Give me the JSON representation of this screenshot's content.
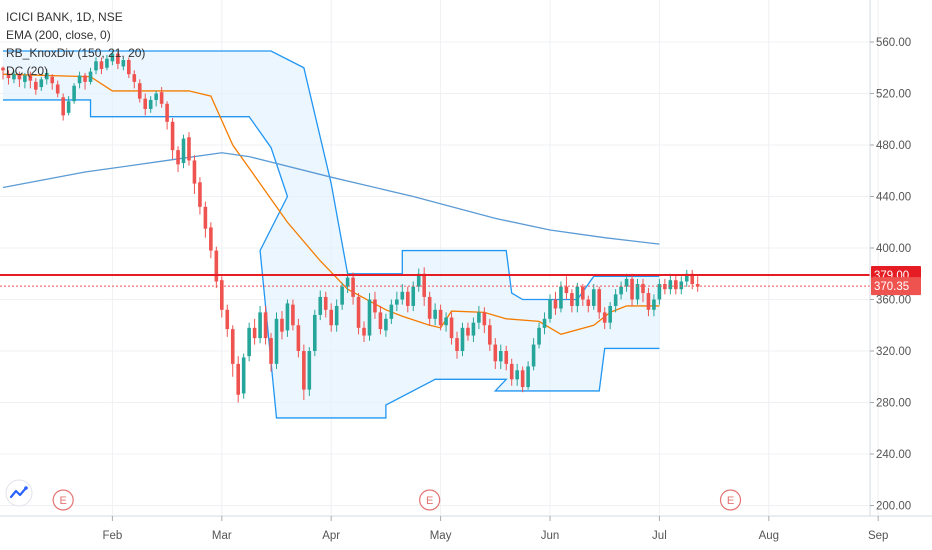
{
  "legend": {
    "symbol": "ICICI BANK, 1D, NSE",
    "ema": "EMA (200, close, 0)",
    "knox": "RB_KnoxDiv (150, 21, 20)",
    "dc": "DC (20)"
  },
  "colors": {
    "up": "#26a69a",
    "down": "#ef5350",
    "donchian": "#2196f3",
    "donchian_fill": "#e3f2fd",
    "midline": "#f57c00",
    "ema": "#5b9bd5",
    "hline": "#e51c23",
    "grid": "#eef0f3"
  },
  "chart_data": {
    "type": "candlestick",
    "y_ticks": [
      "200.00",
      "240.00",
      "280.00",
      "320.00",
      "360.00",
      "400.00",
      "440.00",
      "480.00",
      "520.00",
      "560.00"
    ],
    "ylim": [
      196,
      586
    ],
    "x_ticks": [
      "Feb",
      "Mar",
      "Apr",
      "May",
      "Jun",
      "Jul",
      "Aug",
      "Sep"
    ],
    "x_tick_index": [
      20,
      40,
      60,
      80,
      100,
      120,
      140,
      160
    ],
    "horizontal_line": {
      "value": 379.0,
      "label": "379.00"
    },
    "last_price": {
      "value": 370.35,
      "label": "370.35"
    },
    "earnings_markers": [
      {
        "label": "E",
        "index": 11
      },
      {
        "label": "E",
        "index": 78
      },
      {
        "label": "E",
        "index": 133
      }
    ],
    "ema200": [
      [
        0,
        447
      ],
      [
        15,
        459
      ],
      [
        30,
        468
      ],
      [
        40,
        474
      ],
      [
        45,
        471
      ],
      [
        60,
        455
      ],
      [
        75,
        440
      ],
      [
        90,
        423
      ],
      [
        100,
        414
      ],
      [
        110,
        408
      ],
      [
        120,
        403
      ]
    ],
    "donchian_upper": [
      [
        0,
        553
      ],
      [
        10,
        553
      ],
      [
        26,
        553
      ],
      [
        49,
        553
      ],
      [
        55,
        540
      ],
      [
        60,
        450
      ],
      [
        63,
        380
      ],
      [
        73,
        380
      ],
      [
        73,
        398
      ],
      [
        92,
        398
      ],
      [
        93,
        365
      ],
      [
        95,
        360
      ],
      [
        105,
        360
      ],
      [
        108,
        378
      ],
      [
        120,
        378
      ]
    ],
    "donchian_lower": [
      [
        0,
        515
      ],
      [
        10,
        515
      ],
      [
        16,
        515
      ],
      [
        16,
        502
      ],
      [
        45,
        502
      ],
      [
        49,
        478
      ],
      [
        52,
        440
      ],
      [
        47,
        398
      ],
      [
        50,
        268
      ],
      [
        70,
        268
      ],
      [
        70,
        278
      ],
      [
        79,
        298
      ],
      [
        92,
        298
      ],
      [
        90,
        289
      ],
      [
        109,
        289
      ],
      [
        110,
        322
      ],
      [
        120,
        322
      ]
    ],
    "donchian_mid": [
      [
        0,
        535
      ],
      [
        16,
        533
      ],
      [
        20,
        522
      ],
      [
        34,
        522
      ],
      [
        38,
        518
      ],
      [
        42,
        480
      ],
      [
        45,
        462
      ],
      [
        52,
        420
      ],
      [
        58,
        390
      ],
      [
        63,
        368
      ],
      [
        70,
        352
      ],
      [
        73,
        347
      ],
      [
        78,
        340
      ],
      [
        80,
        338
      ],
      [
        82,
        351
      ],
      [
        88,
        350
      ],
      [
        92,
        345
      ],
      [
        98,
        343
      ],
      [
        102,
        333
      ],
      [
        108,
        340
      ],
      [
        111,
        350
      ],
      [
        114,
        355
      ],
      [
        120,
        355
      ]
    ],
    "candles": [
      [
        540,
        538,
        541,
        531
      ],
      [
        535,
        532,
        538,
        527
      ],
      [
        531,
        535,
        538,
        528
      ],
      [
        535,
        531,
        537,
        525
      ],
      [
        529,
        534,
        536,
        524
      ],
      [
        534,
        530,
        537,
        524
      ],
      [
        529,
        523,
        532,
        519
      ],
      [
        525,
        531,
        533,
        522
      ],
      [
        531,
        536,
        539,
        527
      ],
      [
        533,
        528,
        535,
        523
      ],
      [
        527,
        520,
        530,
        517
      ],
      [
        517,
        503,
        520,
        499
      ],
      [
        505,
        514,
        518,
        503
      ],
      [
        514,
        526,
        528,
        512
      ],
      [
        528,
        534,
        537,
        524
      ],
      [
        534,
        529,
        536,
        523
      ],
      [
        529,
        537,
        540,
        527
      ],
      [
        538,
        545,
        548,
        535
      ],
      [
        545,
        539,
        548,
        535
      ],
      [
        540,
        547,
        550,
        538
      ],
      [
        545,
        551,
        553,
        542
      ],
      [
        551,
        543,
        553,
        539
      ],
      [
        541,
        546,
        548,
        538
      ],
      [
        546,
        535,
        548,
        532
      ],
      [
        535,
        529,
        538,
        524
      ],
      [
        528,
        516,
        531,
        513
      ],
      [
        516,
        508,
        520,
        503
      ],
      [
        508,
        515,
        518,
        505
      ],
      [
        515,
        520,
        522,
        510
      ],
      [
        521,
        512,
        525,
        509
      ],
      [
        512,
        498,
        514,
        492
      ],
      [
        498,
        476,
        501,
        469
      ],
      [
        476,
        465,
        479,
        459
      ],
      [
        466,
        485,
        488,
        462
      ],
      [
        486,
        468,
        490,
        464
      ],
      [
        468,
        450,
        472,
        442
      ],
      [
        451,
        432,
        455,
        426
      ],
      [
        432,
        415,
        436,
        408
      ],
      [
        416,
        398,
        420,
        392
      ],
      [
        398,
        374,
        401,
        369
      ],
      [
        375,
        352,
        378,
        346
      ],
      [
        352,
        337,
        356,
        331
      ],
      [
        337,
        310,
        340,
        300
      ],
      [
        310,
        286,
        316,
        280
      ],
      [
        287,
        315,
        318,
        283
      ],
      [
        316,
        338,
        342,
        312
      ],
      [
        338,
        330,
        345,
        325
      ],
      [
        330,
        350,
        355,
        326
      ],
      [
        350,
        330,
        355,
        325
      ],
      [
        330,
        310,
        334,
        304
      ],
      [
        310,
        345,
        350,
        306
      ],
      [
        345,
        335,
        351,
        329
      ],
      [
        336,
        357,
        360,
        331
      ],
      [
        356,
        340,
        360,
        336
      ],
      [
        340,
        320,
        345,
        315
      ],
      [
        320,
        290,
        325,
        282
      ],
      [
        290,
        320,
        323,
        285
      ],
      [
        320,
        348,
        352,
        316
      ],
      [
        348,
        362,
        367,
        344
      ],
      [
        362,
        352,
        366,
        346
      ],
      [
        352,
        340,
        357,
        335
      ],
      [
        340,
        355,
        360,
        335
      ],
      [
        356,
        370,
        373,
        352
      ],
      [
        370,
        377,
        382,
        365
      ],
      [
        377,
        362,
        381,
        356
      ],
      [
        362,
        338,
        365,
        333
      ],
      [
        338,
        332,
        343,
        327
      ],
      [
        332,
        360,
        365,
        328
      ],
      [
        360,
        350,
        366,
        345
      ],
      [
        350,
        337,
        355,
        333
      ],
      [
        336,
        345,
        349,
        331
      ],
      [
        345,
        356,
        360,
        341
      ],
      [
        356,
        360,
        366,
        351
      ],
      [
        360,
        366,
        372,
        356
      ],
      [
        366,
        355,
        370,
        350
      ],
      [
        355,
        370,
        374,
        351
      ],
      [
        370,
        380,
        384,
        366
      ],
      [
        380,
        362,
        385,
        355
      ],
      [
        362,
        345,
        366,
        340
      ],
      [
        345,
        352,
        357,
        340
      ],
      [
        352,
        340,
        356,
        336
      ],
      [
        340,
        346,
        350,
        335
      ],
      [
        346,
        330,
        350,
        325
      ],
      [
        330,
        320,
        335,
        314
      ],
      [
        320,
        338,
        342,
        316
      ],
      [
        338,
        332,
        342,
        328
      ],
      [
        332,
        342,
        346,
        327
      ],
      [
        342,
        350,
        355,
        337
      ],
      [
        350,
        340,
        354,
        334
      ],
      [
        340,
        325,
        345,
        320
      ],
      [
        325,
        312,
        330,
        306
      ],
      [
        312,
        320,
        325,
        306
      ],
      [
        320,
        310,
        324,
        305
      ],
      [
        310,
        298,
        314,
        293
      ],
      [
        298,
        305,
        310,
        293
      ],
      [
        305,
        292,
        308,
        288
      ],
      [
        292,
        308,
        312,
        290
      ],
      [
        308,
        325,
        330,
        305
      ],
      [
        325,
        338,
        342,
        322
      ],
      [
        338,
        345,
        350,
        333
      ],
      [
        345,
        360,
        364,
        342
      ],
      [
        360,
        353,
        366,
        348
      ],
      [
        353,
        370,
        374,
        350
      ],
      [
        370,
        365,
        378,
        360
      ],
      [
        365,
        355,
        368,
        350
      ],
      [
        355,
        370,
        373,
        350
      ],
      [
        370,
        360,
        372,
        355
      ],
      [
        360,
        355,
        363,
        350
      ],
      [
        355,
        368,
        372,
        352
      ],
      [
        368,
        350,
        370,
        345
      ],
      [
        350,
        342,
        354,
        337
      ],
      [
        342,
        355,
        358,
        337
      ],
      [
        355,
        364,
        368,
        350
      ],
      [
        364,
        370,
        374,
        360
      ],
      [
        370,
        376,
        380,
        366
      ],
      [
        376,
        360,
        380,
        355
      ],
      [
        360,
        372,
        376,
        356
      ],
      [
        372,
        365,
        376,
        358
      ],
      [
        365,
        352,
        369,
        347
      ],
      [
        352,
        360,
        364,
        347
      ],
      [
        360,
        372,
        376,
        356
      ],
      [
        372,
        368,
        376,
        364
      ],
      [
        368,
        375,
        380,
        364
      ],
      [
        375,
        368,
        379,
        364
      ],
      [
        368,
        374,
        378,
        364
      ],
      [
        374,
        380,
        383,
        370
      ],
      [
        380,
        372,
        383,
        368
      ],
      [
        372,
        370,
        378,
        366
      ]
    ]
  }
}
